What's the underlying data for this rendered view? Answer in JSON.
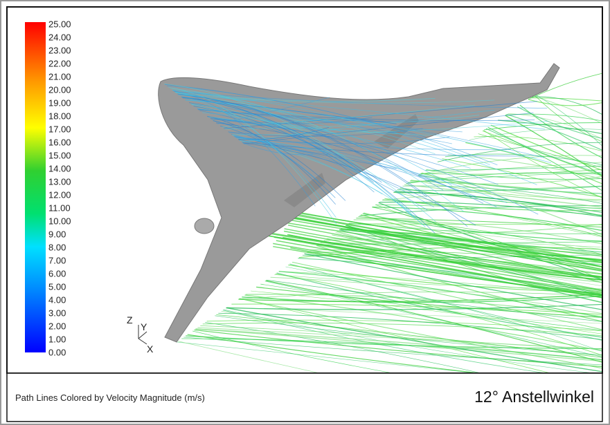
{
  "colorbar": {
    "ticks": [
      "25.00",
      "24.00",
      "23.00",
      "22.00",
      "21.00",
      "20.00",
      "19.00",
      "18.00",
      "17.00",
      "16.00",
      "15.00",
      "14.00",
      "13.00",
      "12.00",
      "11.00",
      "10.00",
      "9.00",
      "8.00",
      "7.00",
      "6.00",
      "5.00",
      "4.00",
      "3.00",
      "2.00",
      "1.00",
      "0.00"
    ]
  },
  "axes_triad": {
    "z": "Z",
    "y": "Y",
    "x": "X"
  },
  "caption": {
    "description": "Path Lines Colored by Velocity Magnitude (m/s)",
    "case": "12° Anstellwinkel"
  }
}
